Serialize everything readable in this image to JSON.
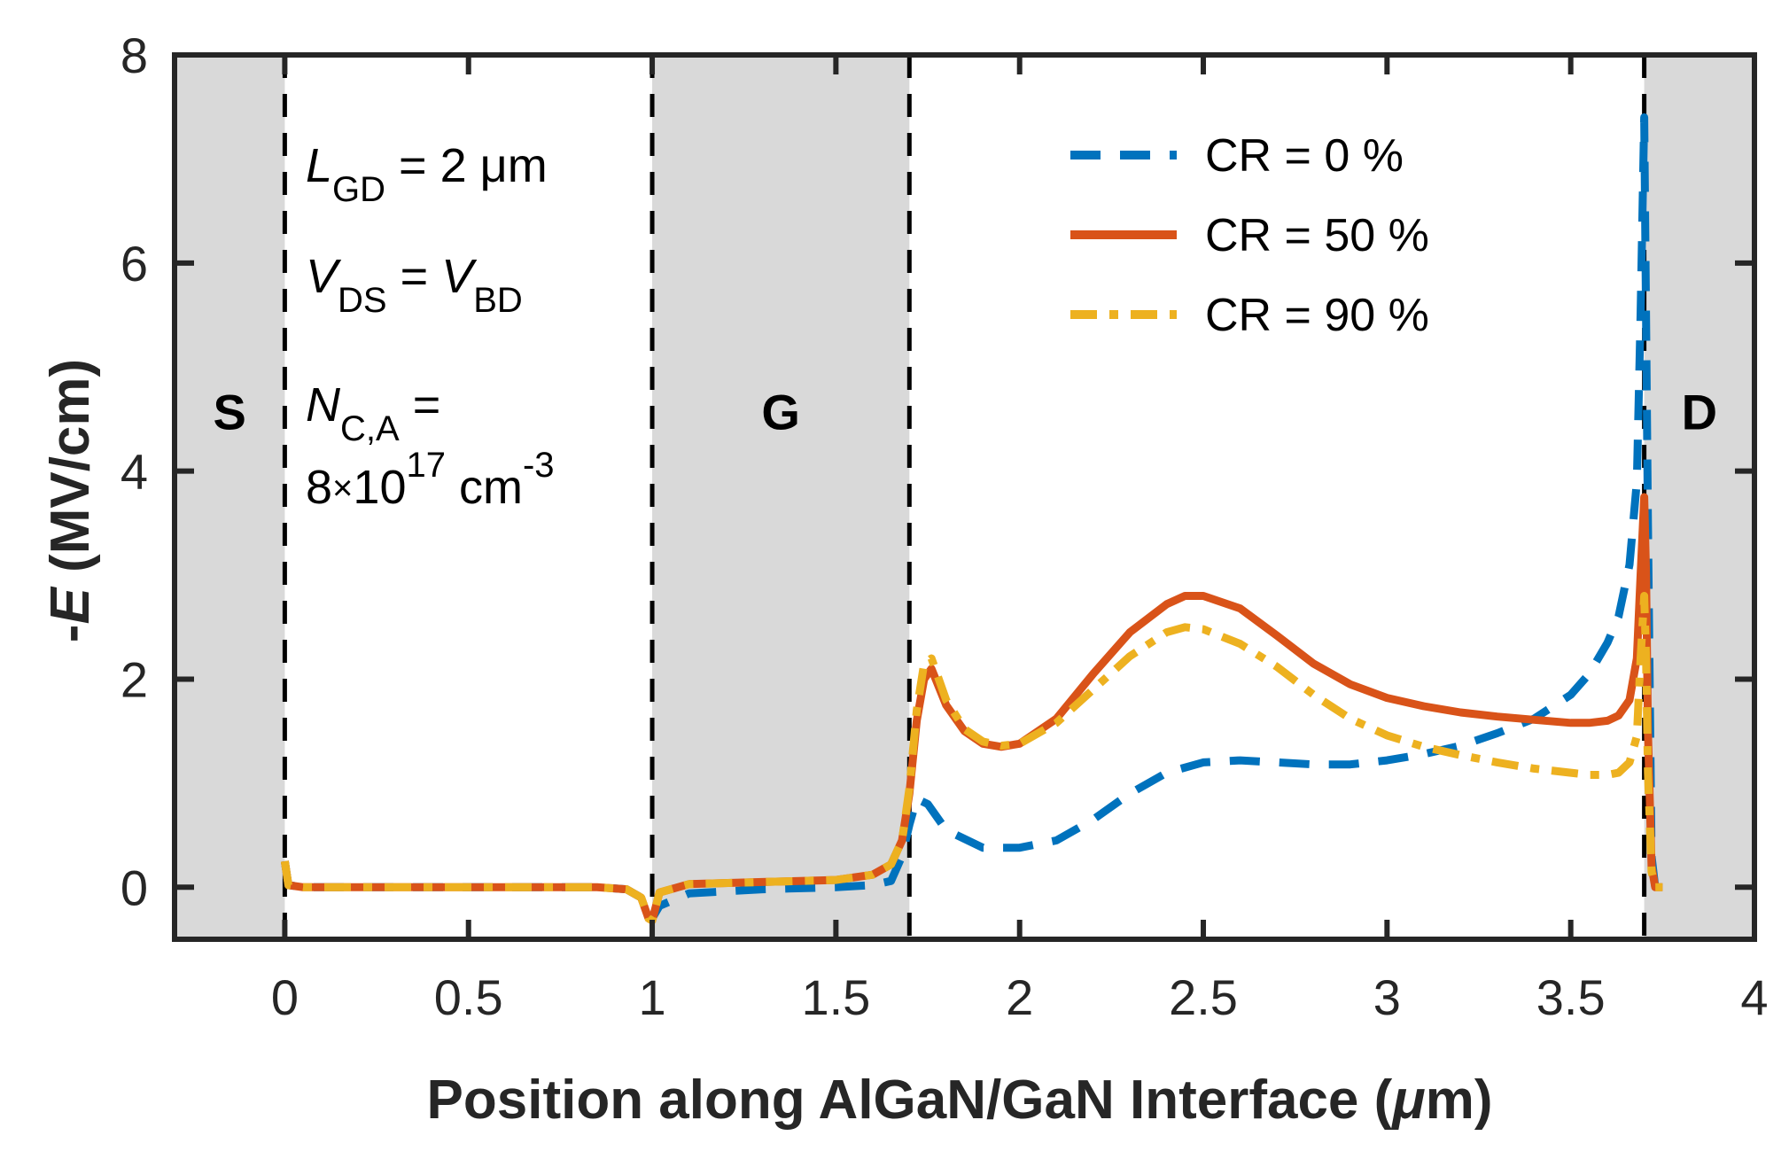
{
  "chart_data": {
    "type": "line",
    "xlabel": "Position along AlGaN/GaN Interface (",
    "xlabel_unit": "μ",
    "xlabel_tail": "m)",
    "ylabel_prefix": "-",
    "ylabel_var": "E",
    "ylabel_unit": " (MV/cm)",
    "xlim": [
      -0.3,
      4.0
    ],
    "ylim": [
      -0.5,
      8.0
    ],
    "xticks": [
      0,
      0.5,
      1,
      1.5,
      2,
      2.5,
      3,
      3.5,
      4
    ],
    "xtick_labels": [
      "0",
      "0.5",
      "1",
      "1.5",
      "2",
      "2.5",
      "3",
      "3.5",
      "4"
    ],
    "yticks": [
      0,
      2,
      4,
      6,
      8
    ],
    "ytick_labels": [
      "0",
      "2",
      "4",
      "6",
      "8"
    ],
    "regions": [
      {
        "label": "S",
        "x0": -0.3,
        "x1": 0.0,
        "label_x": -0.15,
        "label_y": 4.4
      },
      {
        "label": "G",
        "x0": 1.0,
        "x1": 1.7,
        "label_x": 1.35,
        "label_y": 4.4
      },
      {
        "label": "D",
        "x0": 3.7,
        "x1": 4.0,
        "label_x": 3.85,
        "label_y": 4.4
      }
    ],
    "boundaries": [
      0.0,
      1.0,
      1.7,
      3.7
    ],
    "annotations": {
      "lgd": {
        "var": "L",
        "sub": "GD",
        "rest": " = 2 μm"
      },
      "vds": {
        "var1": "V",
        "sub1": "DS",
        "eq": " = ",
        "var2": "V",
        "sub2": "BD"
      },
      "nca": {
        "var": "N",
        "sub": "C,A",
        "rest": " ="
      },
      "nca_value": {
        "mant": "8",
        "times": "×",
        "base": "10",
        "exp": "17",
        "unit": " cm",
        "unit_exp": "-3"
      }
    },
    "series": [
      {
        "name": "CR = 0 %",
        "color": "#0072BD",
        "style": "dashed",
        "x": [
          0.0,
          0.01,
          0.05,
          0.3,
          0.6,
          0.85,
          0.93,
          0.97,
          0.99,
          1.0,
          1.02,
          1.1,
          1.3,
          1.5,
          1.6,
          1.65,
          1.68,
          1.7,
          1.72,
          1.75,
          1.8,
          1.9,
          2.0,
          2.1,
          2.2,
          2.3,
          2.4,
          2.5,
          2.6,
          2.7,
          2.8,
          2.9,
          3.0,
          3.1,
          3.2,
          3.3,
          3.4,
          3.5,
          3.55,
          3.6,
          3.63,
          3.66,
          3.68,
          3.69,
          3.7,
          3.71,
          3.72,
          3.73,
          3.75
        ],
        "y": [
          0.25,
          0.02,
          0.0,
          0.0,
          0.0,
          0.0,
          -0.02,
          -0.1,
          -0.25,
          -0.3,
          -0.18,
          -0.06,
          -0.02,
          0.0,
          0.02,
          0.06,
          0.3,
          0.6,
          0.85,
          0.8,
          0.55,
          0.38,
          0.38,
          0.45,
          0.65,
          0.9,
          1.1,
          1.2,
          1.22,
          1.2,
          1.18,
          1.18,
          1.22,
          1.28,
          1.36,
          1.48,
          1.62,
          1.85,
          2.05,
          2.35,
          2.6,
          3.1,
          3.9,
          5.5,
          7.4,
          3.5,
          0.3,
          0.0,
          0.0
        ]
      },
      {
        "name": "CR = 50 %",
        "color": "#D95319",
        "style": "solid",
        "x": [
          0.0,
          0.01,
          0.05,
          0.3,
          0.6,
          0.85,
          0.93,
          0.97,
          0.99,
          1.0,
          1.02,
          1.1,
          1.3,
          1.5,
          1.6,
          1.65,
          1.68,
          1.7,
          1.72,
          1.74,
          1.76,
          1.8,
          1.85,
          1.9,
          1.95,
          2.0,
          2.1,
          2.2,
          2.3,
          2.4,
          2.45,
          2.5,
          2.6,
          2.7,
          2.8,
          2.9,
          3.0,
          3.1,
          3.2,
          3.3,
          3.4,
          3.5,
          3.55,
          3.6,
          3.63,
          3.66,
          3.68,
          3.69,
          3.7,
          3.705,
          3.71,
          3.72,
          3.73,
          3.75
        ],
        "y": [
          0.25,
          0.02,
          0.0,
          0.0,
          0.0,
          0.0,
          -0.02,
          -0.1,
          -0.3,
          -0.32,
          -0.05,
          0.03,
          0.05,
          0.07,
          0.12,
          0.22,
          0.45,
          0.9,
          1.6,
          2.0,
          2.1,
          1.75,
          1.5,
          1.38,
          1.35,
          1.38,
          1.62,
          2.05,
          2.45,
          2.72,
          2.8,
          2.8,
          2.68,
          2.42,
          2.15,
          1.95,
          1.82,
          1.74,
          1.68,
          1.64,
          1.61,
          1.58,
          1.58,
          1.6,
          1.65,
          1.8,
          2.2,
          3.0,
          3.75,
          3.0,
          1.5,
          0.2,
          0.0,
          0.0
        ]
      },
      {
        "name": "CR = 90 %",
        "color": "#EDB120",
        "style": "dashdot",
        "x": [
          0.0,
          0.01,
          0.05,
          0.3,
          0.6,
          0.85,
          0.93,
          0.97,
          0.99,
          1.0,
          1.02,
          1.1,
          1.3,
          1.5,
          1.6,
          1.65,
          1.68,
          1.7,
          1.72,
          1.74,
          1.76,
          1.8,
          1.85,
          1.9,
          1.95,
          2.0,
          2.1,
          2.2,
          2.3,
          2.4,
          2.45,
          2.5,
          2.6,
          2.7,
          2.8,
          2.9,
          3.0,
          3.1,
          3.2,
          3.3,
          3.4,
          3.5,
          3.55,
          3.6,
          3.63,
          3.66,
          3.68,
          3.69,
          3.7,
          3.705,
          3.71,
          3.72,
          3.73,
          3.75
        ],
        "y": [
          0.25,
          0.02,
          0.0,
          0.0,
          0.0,
          0.0,
          -0.02,
          -0.1,
          -0.3,
          -0.32,
          -0.05,
          0.03,
          0.05,
          0.07,
          0.12,
          0.22,
          0.45,
          0.95,
          1.7,
          2.15,
          2.2,
          1.8,
          1.52,
          1.4,
          1.36,
          1.38,
          1.58,
          1.9,
          2.22,
          2.45,
          2.5,
          2.48,
          2.34,
          2.12,
          1.85,
          1.62,
          1.46,
          1.35,
          1.27,
          1.2,
          1.14,
          1.1,
          1.08,
          1.08,
          1.1,
          1.2,
          1.45,
          2.2,
          2.8,
          2.2,
          1.1,
          0.15,
          0.0,
          0.0
        ]
      }
    ],
    "legend": {
      "location": "top-right"
    }
  }
}
